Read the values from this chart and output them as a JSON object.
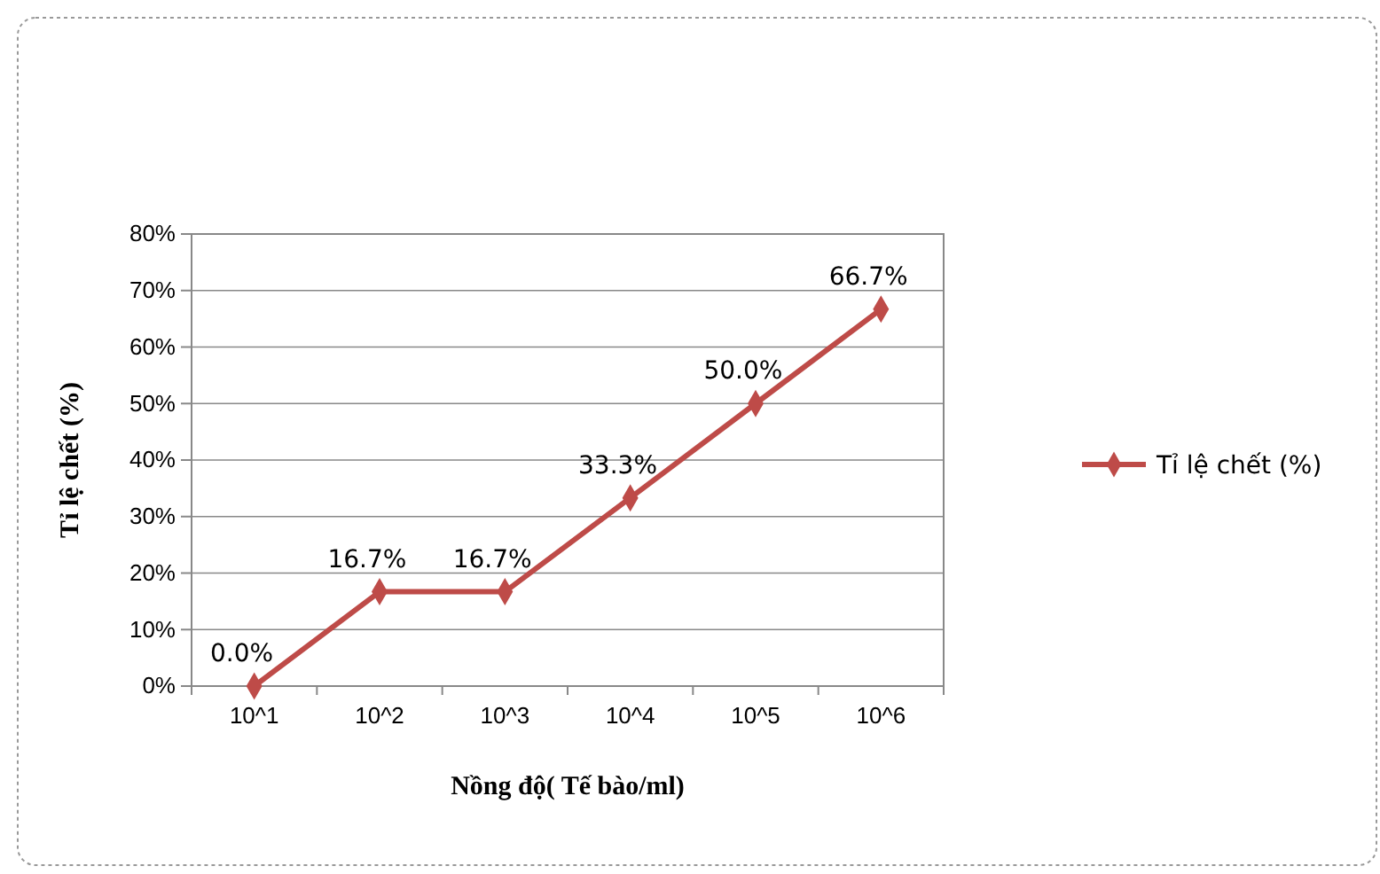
{
  "chart_data": {
    "type": "line",
    "xlabel": "Nồng độ( Tế bào/ml)",
    "ylabel": "Tỉ lệ chết (%)",
    "categories": [
      "10^1",
      "10^2",
      "10^3",
      "10^4",
      "10^5",
      "10^6"
    ],
    "series": [
      {
        "name": "Tỉ lệ chết (%)",
        "color": "#be4b48",
        "values": [
          0,
          16.7,
          16.7,
          33.3,
          50,
          66.7
        ],
        "value_labels": [
          "0.0%",
          "16.7%",
          "16.7%",
          "33.3%",
          "50.0%",
          "66.7%"
        ]
      }
    ],
    "ylim": [
      0,
      80
    ],
    "yticks": [
      {
        "value": 0,
        "label": "0%"
      },
      {
        "value": 10,
        "label": "10%"
      },
      {
        "value": 20,
        "label": "20%"
      },
      {
        "value": 30,
        "label": "30%"
      },
      {
        "value": 40,
        "label": "40%"
      },
      {
        "value": 50,
        "label": "50%"
      },
      {
        "value": 60,
        "label": "60%"
      },
      {
        "value": 70,
        "label": "70%"
      },
      {
        "value": 80,
        "label": "80%"
      }
    ],
    "grid": "y",
    "legend": "right",
    "marker": "diamond",
    "line_style": "solid"
  }
}
